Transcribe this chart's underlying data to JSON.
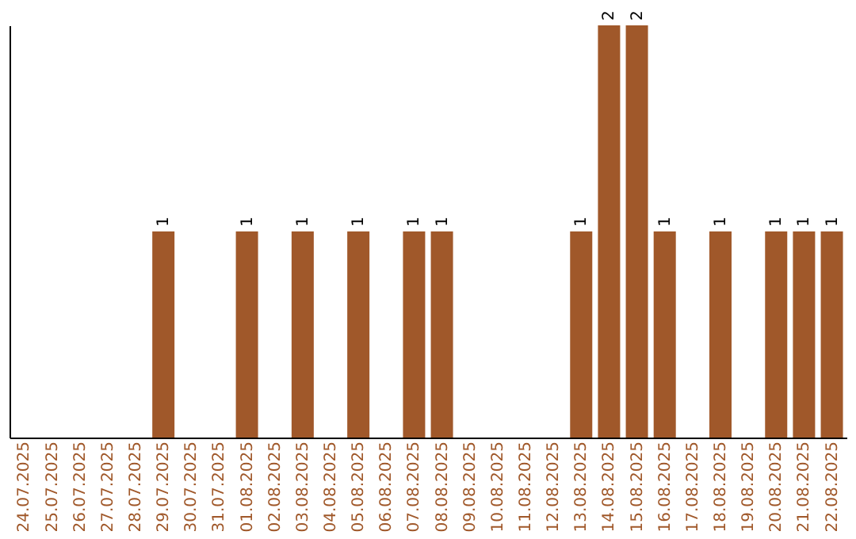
{
  "chart_data": {
    "type": "bar",
    "categories": [
      "24.07.2025",
      "25.07.2025",
      "26.07.2025",
      "27.07.2025",
      "28.07.2025",
      "29.07.2025",
      "30.07.2025",
      "31.07.2025",
      "01.08.2025",
      "02.08.2025",
      "03.08.2025",
      "04.08.2025",
      "05.08.2025",
      "06.08.2025",
      "07.08.2025",
      "08.08.2025",
      "09.08.2025",
      "10.08.2025",
      "11.08.2025",
      "12.08.2025",
      "13.08.2025",
      "14.08.2025",
      "15.08.2025",
      "16.08.2025",
      "17.08.2025",
      "18.08.2025",
      "19.08.2025",
      "20.08.2025",
      "21.08.2025",
      "22.08.2025"
    ],
    "values": [
      0,
      0,
      0,
      0,
      0,
      1,
      0,
      0,
      1,
      0,
      1,
      0,
      1,
      0,
      1,
      1,
      0,
      0,
      0,
      0,
      1,
      2,
      2,
      1,
      0,
      1,
      0,
      1,
      1,
      1
    ],
    "value_labels": [
      null,
      null,
      null,
      null,
      null,
      "1",
      null,
      null,
      "1",
      null,
      "1",
      null,
      "1",
      null,
      "1",
      "1",
      null,
      null,
      null,
      null,
      "1",
      "2",
      "2",
      "1",
      null,
      "1",
      null,
      "1",
      "1",
      "1"
    ],
    "color": "#a0582a",
    "ylim": [
      0,
      2
    ],
    "tick_labels": "x",
    "grid": false
  }
}
